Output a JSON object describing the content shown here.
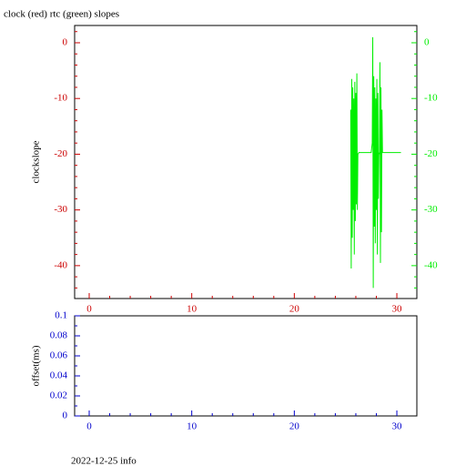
{
  "chart_data": [
    {
      "type": "line",
      "title": "clock (red) rtc (green) slopes",
      "y_label": "clockslope",
      "x": [
        25.5,
        25.55,
        25.6,
        25.65,
        25.7,
        25.75,
        25.8,
        25.85,
        25.9,
        25.95,
        26.0,
        26.05,
        26.1,
        26.15,
        26.2,
        26.3,
        27.5,
        27.6,
        27.65,
        27.7,
        27.75,
        27.8,
        27.85,
        27.9,
        27.95,
        28.0,
        28.05,
        28.1,
        28.15,
        28.2,
        28.25,
        28.3,
        28.35,
        28.4,
        28.45,
        28.5,
        28.55,
        28.6,
        29.0,
        30.4
      ],
      "series": [
        {
          "color": "#00ee00",
          "axis": "y2",
          "values": [
            -12,
            -40.5,
            -6.5,
            -35,
            -8,
            -30,
            -10,
            -38,
            -7,
            -32,
            -9,
            -29,
            -5.5,
            -30,
            -20,
            -19.7,
            -19.7,
            -18,
            1,
            -44,
            -6,
            -33,
            -8,
            -36,
            -10,
            -30,
            -6.5,
            -38,
            -9,
            -28,
            -19.7,
            -20,
            -3.5,
            -39.5,
            -8,
            -34,
            -12,
            -19.7,
            -19.7,
            -19.7
          ]
        }
      ],
      "xlim": [
        -1.42,
        31.95
      ],
      "xticks": [
        0,
        10,
        20,
        30
      ],
      "xminorticks": [
        2,
        4,
        6,
        8,
        12,
        14,
        16,
        18,
        22,
        24,
        26,
        28
      ],
      "ylim": [
        -45.9,
        3.1
      ],
      "yticks": [
        0,
        -10,
        -20,
        -30,
        -40
      ],
      "yminorticks": [
        2,
        -2,
        -4,
        -6,
        -8,
        -12,
        -14,
        -16,
        -18,
        -22,
        -24,
        -26,
        -28,
        -32,
        -34,
        -36,
        -38,
        -42,
        -44
      ],
      "y2lim": [
        -45.9,
        3.1
      ],
      "y2ticks": [
        0,
        -10,
        -20,
        -30,
        -40
      ],
      "y2minorticks": [
        2,
        -2,
        -4,
        -6,
        -8,
        -12,
        -14,
        -16,
        -18,
        -22,
        -24,
        -26,
        -28,
        -32,
        -34,
        -36,
        -38,
        -42,
        -44
      ],
      "xaxis_color": "#cc0000",
      "yaxis_color": "#cc0000",
      "y2axis_color": "#00ee00"
    },
    {
      "type": "line",
      "y_label": "offset(ms)",
      "x": [],
      "series": [],
      "xlim": [
        -1.42,
        31.95
      ],
      "xticks": [
        0,
        10,
        20,
        30
      ],
      "xminorticks": [
        2,
        4,
        6,
        8,
        12,
        14,
        16,
        18,
        22,
        24,
        26,
        28
      ],
      "ylim": [
        0,
        0.1
      ],
      "yticks": [
        0,
        0.02,
        0.04,
        0.06,
        0.08,
        0.1
      ],
      "yminorticks": [
        0.01,
        0.03,
        0.05,
        0.07,
        0.09
      ],
      "xaxis_color": "#0000cc",
      "yaxis_color": "#0000cc"
    }
  ],
  "footer": "2022-12-25 info"
}
